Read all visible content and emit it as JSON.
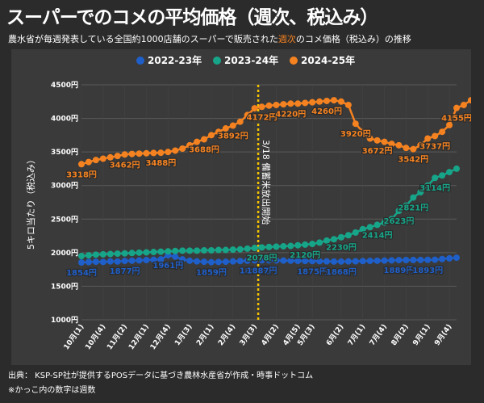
{
  "header": {
    "title": "スーパーでのコメの平均価格（週次、税込み）",
    "subtitle_pre": "農水省が毎週発表している全国約1000店舗のスーパーで販売された",
    "subtitle_highlight": "週次",
    "subtitle_post": "のコメ価格（税込み）の推移"
  },
  "footer": {
    "source": "出典： KSP-SP社が提供するPOSデータに基づき農林水産省が作成・時事ドットコム",
    "note": "※かっこ内の数字は週数"
  },
  "colors": {
    "background": "#2b2b2b",
    "plot_background": "#3a3a3a",
    "series_2022": "#1f5fc9",
    "series_2023": "#17a589",
    "series_2024": "#f58220",
    "annotation_line": "#f5c400"
  },
  "chart_data": {
    "type": "line",
    "ylabel": "5キロ当たり（税込み）",
    "ylim": [
      1000,
      4500
    ],
    "yticks": [
      1000,
      1500,
      2000,
      2500,
      3000,
      3500,
      4000,
      4500
    ],
    "ytick_labels": [
      "1000円",
      "1500円",
      "2000円",
      "2500円",
      "3000円",
      "3500円",
      "4000円",
      "4500円"
    ],
    "grid": true,
    "legend_position": "top",
    "x_tick_labels": [
      "10月(1)",
      "10月(4)",
      "11月(2)",
      "12月(1)",
      "12月(4)",
      "1月(3)",
      "2月(1)",
      "2月(4)",
      "3月(3)",
      "4月(2)",
      "4月(5)",
      "5月(3)",
      "6月(2)",
      "7月(1)",
      "7月(4)",
      "8月(2)",
      "9月(1)",
      "9月(4)"
    ],
    "x_tick_weeks": [
      0,
      3,
      6,
      9,
      12,
      15,
      18,
      21,
      24,
      27,
      30,
      32,
      36,
      39,
      42,
      45,
      48,
      51
    ],
    "annotation": {
      "week": 24.5,
      "label": "3/18 備蓄米放出開始"
    },
    "series": [
      {
        "name": "2022-23年",
        "values": [
          1854,
          1860,
          1865,
          1862,
          1870,
          1868,
          1877,
          1880,
          1885,
          1890,
          1895,
          1900,
          1961,
          1940,
          1900,
          1880,
          1870,
          1865,
          1859,
          1862,
          1865,
          1870,
          1875,
          1880,
          1885,
          1887,
          1886,
          1884,
          1882,
          1880,
          1878,
          1876,
          1875,
          1873,
          1870,
          1868,
          1868,
          1870,
          1872,
          1875,
          1878,
          1880,
          1882,
          1885,
          1889,
          1890,
          1891,
          1892,
          1893,
          1895,
          1905,
          1915,
          1925
        ]
      },
      {
        "name": "2023-24年",
        "values": [
          1950,
          1960,
          1970,
          1975,
          1980,
          1985,
          1990,
          1995,
          2000,
          2005,
          2010,
          2015,
          2020,
          2025,
          2030,
          2030,
          2030,
          2035,
          2035,
          2040,
          2040,
          2045,
          2050,
          2060,
          2070,
          2078,
          2085,
          2090,
          2095,
          2100,
          2110,
          2120,
          2130,
          2150,
          2180,
          2200,
          2230,
          2260,
          2300,
          2350,
          2380,
          2414,
          2450,
          2500,
          2623,
          2700,
          2821,
          2900,
          3000,
          3114,
          3150,
          3200,
          3250
        ]
      },
      {
        "name": "2024-25年",
        "values": [
          3318,
          3350,
          3380,
          3400,
          3420,
          3440,
          3462,
          3470,
          3475,
          3480,
          3485,
          3488,
          3500,
          3520,
          3550,
          3600,
          3650,
          3688,
          3750,
          3800,
          3850,
          3892,
          3950,
          4050,
          4150,
          4172,
          4190,
          4200,
          4210,
          4220,
          4220,
          4230,
          4240,
          4250,
          4260,
          4270,
          4250,
          4200,
          3920,
          3800,
          3700,
          3672,
          3650,
          3620,
          3600,
          3560,
          3542,
          3600,
          3700,
          3737,
          3800,
          3900,
          4155,
          4200,
          4270
        ]
      }
    ],
    "data_labels": [
      {
        "series": 0,
        "index": 0,
        "text": "1854円"
      },
      {
        "series": 0,
        "index": 6,
        "text": "1877円"
      },
      {
        "series": 0,
        "index": 12,
        "text": "1961円"
      },
      {
        "series": 0,
        "index": 18,
        "text": "1859円"
      },
      {
        "series": 0,
        "index": 24,
        "text": "1885円"
      },
      {
        "series": 0,
        "index": 25,
        "text": "1887円"
      },
      {
        "series": 0,
        "index": 32,
        "text": "1875円"
      },
      {
        "series": 0,
        "index": 36,
        "text": "1868円"
      },
      {
        "series": 0,
        "index": 44,
        "text": "1889円"
      },
      {
        "series": 0,
        "index": 48,
        "text": "1893円"
      },
      {
        "series": 1,
        "index": 25,
        "text": "2078円"
      },
      {
        "series": 1,
        "index": 31,
        "text": "2120円"
      },
      {
        "series": 1,
        "index": 36,
        "text": "2230円"
      },
      {
        "series": 1,
        "index": 41,
        "text": "2414円"
      },
      {
        "series": 1,
        "index": 44,
        "text": "2623円"
      },
      {
        "series": 1,
        "index": 46,
        "text": "2821円"
      },
      {
        "series": 1,
        "index": 49,
        "text": "3114円"
      },
      {
        "series": 2,
        "index": 0,
        "text": "3318円"
      },
      {
        "series": 2,
        "index": 6,
        "text": "3462円"
      },
      {
        "series": 2,
        "index": 11,
        "text": "3488円"
      },
      {
        "series": 2,
        "index": 17,
        "text": "3688円"
      },
      {
        "series": 2,
        "index": 21,
        "text": "3892円"
      },
      {
        "series": 2,
        "index": 25,
        "text": "4172円"
      },
      {
        "series": 2,
        "index": 29,
        "text": "4220円"
      },
      {
        "series": 2,
        "index": 34,
        "text": "4260円"
      },
      {
        "series": 2,
        "index": 38,
        "text": "3920円"
      },
      {
        "series": 2,
        "index": 41,
        "text": "3672円"
      },
      {
        "series": 2,
        "index": 46,
        "text": "3542円"
      },
      {
        "series": 2,
        "index": 49,
        "text": "3737円"
      },
      {
        "series": 2,
        "index": 52,
        "text": "4155円"
      }
    ]
  }
}
